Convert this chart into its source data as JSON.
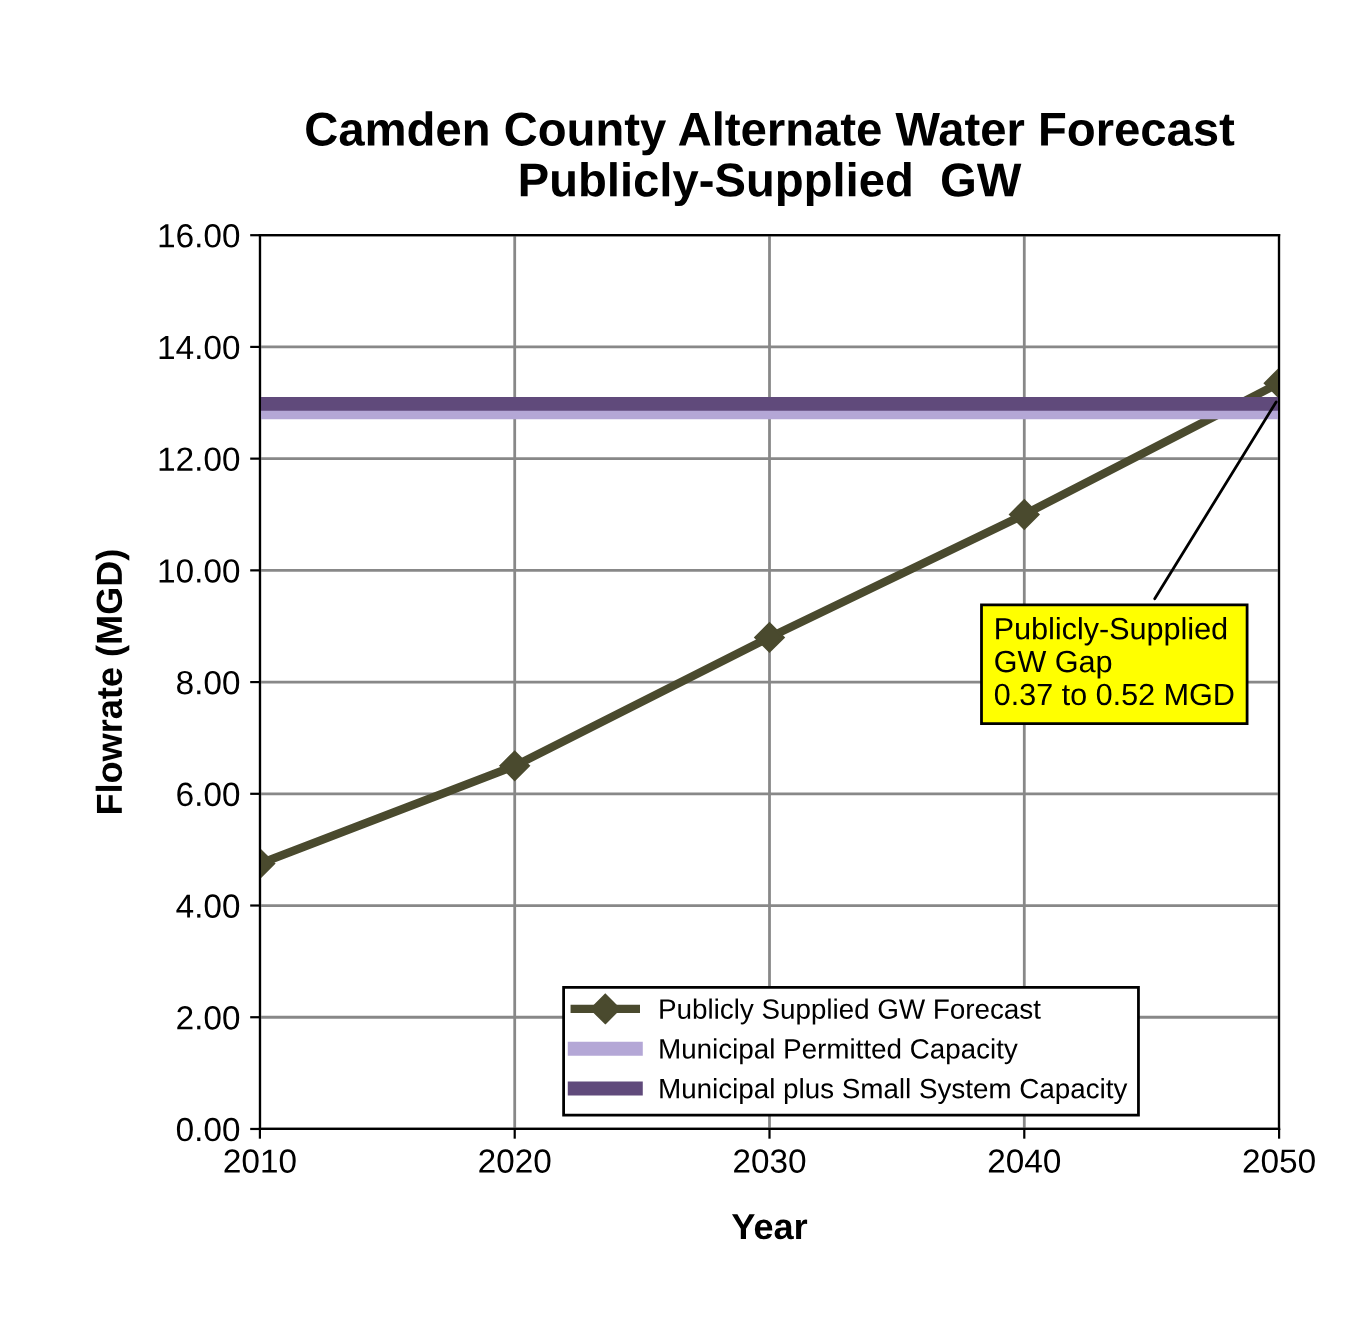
{
  "chart_data": {
    "type": "line",
    "title": "Camden County Alternate Water Forecast\nPublicly-Supplied  GW",
    "xlabel": "Year",
    "ylabel": "Flowrate (MGD)",
    "x": [
      2010,
      2020,
      2030,
      2040,
      2050
    ],
    "series": [
      {
        "name": "Publicly Supplied GW Forecast",
        "color": "#4a4a2e",
        "values": [
          4.75,
          6.5,
          8.8,
          11.0,
          13.35
        ],
        "marker": "diamond"
      },
      {
        "name": "Municipal Permitted Capacity",
        "color": "#b4a7d6",
        "values": [
          12.83,
          12.83,
          12.83,
          12.83,
          12.83
        ],
        "marker": "none"
      },
      {
        "name": "Municipal plus Small System Capacity",
        "color": "#604a7b",
        "values": [
          12.98,
          12.98,
          12.98,
          12.98,
          12.98
        ],
        "marker": "none"
      }
    ],
    "xlim": [
      2010,
      2050
    ],
    "xticks": [
      2010,
      2020,
      2030,
      2040,
      2050
    ],
    "ylim": [
      0,
      16
    ],
    "yticks": [
      {
        "value": 0,
        "label": "0.00"
      },
      {
        "value": 2,
        "label": "2.00"
      },
      {
        "value": 4,
        "label": "4.00"
      },
      {
        "value": 6,
        "label": "6.00"
      },
      {
        "value": 8,
        "label": "8.00"
      },
      {
        "value": 10,
        "label": "10.00"
      },
      {
        "value": 12,
        "label": "12.00"
      },
      {
        "value": 14,
        "label": "14.00"
      },
      {
        "value": 16,
        "label": "16.00"
      }
    ],
    "annotations": [
      {
        "text": "Publicly-Supplied\nGW Gap\n0.37 to 0.52 MGD",
        "x": 2050,
        "y": 13.1
      }
    ],
    "grid": true,
    "legend": "bottom",
    "line_style": "solid"
  }
}
